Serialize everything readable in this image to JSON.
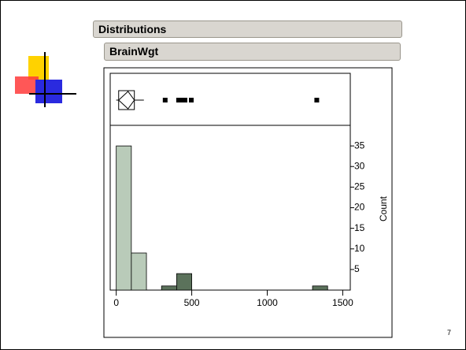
{
  "header": {
    "title": "Distributions",
    "variable": "BrainWgt"
  },
  "page_number": "7",
  "chart_data": {
    "type": "histogram",
    "bins": [
      0,
      100,
      200,
      300,
      400,
      500,
      600,
      700,
      800,
      900,
      1000,
      1100,
      1200,
      1300,
      1400
    ],
    "values": [
      35,
      9,
      0,
      1,
      4,
      0,
      0,
      0,
      0,
      0,
      0,
      0,
      0,
      1
    ],
    "colors": [
      "#b9cbb9",
      "#b9cbb9",
      "#5b725b",
      "#5b725b",
      "#5b725b",
      "#5b725b",
      "#5b725b",
      "#5b725b",
      "#5b725b",
      "#5b725b",
      "#5b725b",
      "#5b725b",
      "#5b725b",
      "#5b725b"
    ],
    "xlim": [
      -40,
      1550
    ],
    "xticks": [
      0,
      500,
      1000,
      1500
    ],
    "ylim": [
      0,
      40
    ],
    "yticks": [
      5,
      10,
      15,
      20,
      25,
      30,
      35
    ],
    "y_label": "Count",
    "box": {
      "q1": 16,
      "q3": 120,
      "mean": 78,
      "whisker_low": 0,
      "whisker_high": 183,
      "outliers": [
        324,
        413,
        434,
        455,
        497,
        1328
      ]
    }
  }
}
